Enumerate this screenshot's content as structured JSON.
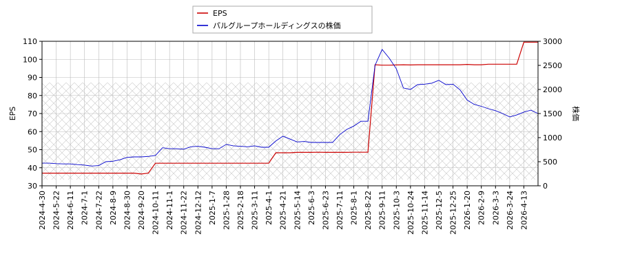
{
  "chart_data": {
    "type": "line",
    "categories": [
      "2024-4-30",
      null,
      "2024-5-22",
      null,
      "2024-6-11",
      null,
      "2024-7-1",
      null,
      "2024-7-22",
      null,
      "2024-8-9",
      null,
      "2024-8-30",
      null,
      "2024-9-20",
      null,
      "2024-10-11",
      null,
      "2024-11-1",
      null,
      "2024-11-22",
      null,
      "2024-12-12",
      null,
      "2025-1-7",
      null,
      "2025-1-28",
      null,
      "2025-2-18",
      null,
      "2025-3-11",
      null,
      "2025-4-1",
      null,
      "2025-4-21",
      null,
      "2025-5-14",
      null,
      "2025-6-3",
      null,
      "2025-6-23",
      null,
      "2025-7-11",
      null,
      "2025-8-1",
      null,
      "2025-8-22",
      null,
      "2025-9-11",
      null,
      "2025-10-3",
      null,
      "2025-10-24",
      null,
      "2025-11-14",
      null,
      "2025-12-5",
      null,
      "2025-12-25",
      null,
      "2026-1-20",
      null,
      "2026-2-9",
      null,
      "2026-3-3",
      null,
      "2026-3-24",
      null,
      "2026-4-13",
      null,
      null
    ],
    "series": [
      {
        "name": "EPS",
        "color": "#cc0000",
        "axis": "y",
        "values": [
          37,
          37,
          37,
          37,
          37,
          37,
          37,
          37,
          37,
          37,
          37,
          37,
          37,
          37,
          36.5,
          37,
          42.5,
          42.5,
          42.5,
          42.5,
          42.5,
          42.5,
          42.5,
          42.5,
          42.5,
          42.5,
          42.5,
          42.5,
          42.5,
          42.5,
          42.5,
          42.5,
          42.5,
          48.3,
          48.3,
          48.3,
          48.5,
          48.5,
          48.5,
          48.6,
          48.5,
          48.5,
          48.5,
          48.5,
          48.6,
          48.6,
          48.6,
          97,
          96.8,
          96.8,
          96.9,
          97,
          96.9,
          97,
          97,
          97,
          97,
          97,
          97,
          97,
          97.2,
          97,
          97,
          97.3,
          97.3,
          97.3,
          97.3,
          97.3,
          109.5,
          109.5,
          109.5
        ]
      },
      {
        "name": "パルグループホールディングスの株価",
        "color": "#0000cc",
        "axis": "y2",
        "values": [
          470,
          470,
          460,
          455,
          455,
          440,
          430,
          410,
          420,
          500,
          510,
          540,
          590,
          600,
          600,
          610,
          630,
          790,
          770,
          770,
          760,
          810,
          820,
          800,
          770,
          770,
          860,
          830,
          820,
          810,
          830,
          800,
          800,
          930,
          1030,
          970,
          910,
          920,
          900,
          900,
          900,
          900,
          1060,
          1170,
          1240,
          1340,
          1340,
          2500,
          2830,
          2650,
          2430,
          2030,
          2000,
          2100,
          2110,
          2130,
          2190,
          2100,
          2110,
          1990,
          1780,
          1690,
          1650,
          1600,
          1560,
          1500,
          1430,
          1470,
          1530,
          1570,
          1500
        ]
      }
    ],
    "ylabel": "EPS",
    "y2label": "株価",
    "ylim": [
      30,
      110
    ],
    "yticks": [
      30,
      40,
      50,
      60,
      70,
      80,
      90,
      100,
      110
    ],
    "y2lim": [
      0,
      3000
    ],
    "y2ticks": [
      0,
      500,
      1000,
      1500,
      2000,
      2500,
      3000
    ],
    "grid": true,
    "legend": "top"
  }
}
